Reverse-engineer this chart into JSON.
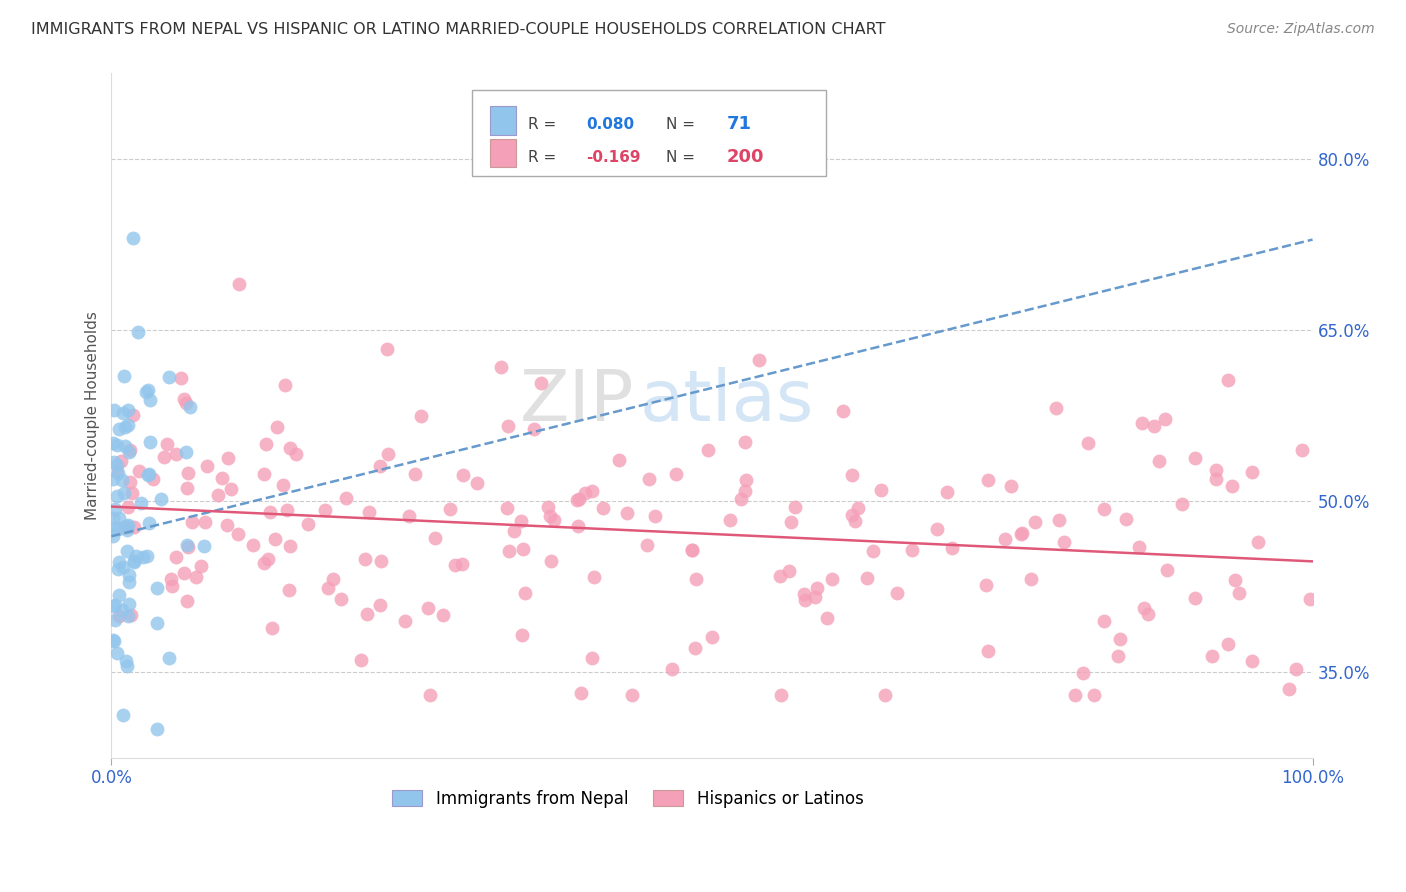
{
  "title": "IMMIGRANTS FROM NEPAL VS HISPANIC OR LATINO MARRIED-COUPLE HOUSEHOLDS CORRELATION CHART",
  "source": "Source: ZipAtlas.com",
  "ylabel": "Married-couple Households",
  "xlim": [
    0.0,
    1.0
  ],
  "ylim": [
    0.275,
    0.875
  ],
  "yticks": [
    0.35,
    0.5,
    0.65,
    0.8
  ],
  "ytick_labels": [
    "35.0%",
    "50.0%",
    "65.0%",
    "80.0%"
  ],
  "nepal_color": "#92C5EC",
  "hispanic_color": "#F4A0B8",
  "nepal_line_color": "#6699CC",
  "hispanic_line_color": "#E05878",
  "background_color": "#ffffff",
  "grid_color": "#cccccc",
  "nepal_n": 71,
  "hispanic_n": 200,
  "nepal_intercept": 0.469,
  "nepal_slope": 0.26,
  "hispanic_intercept": 0.495,
  "hispanic_slope": -0.048,
  "axis_label_color": "#3366CC",
  "title_color": "#333333",
  "source_color": "#888888"
}
